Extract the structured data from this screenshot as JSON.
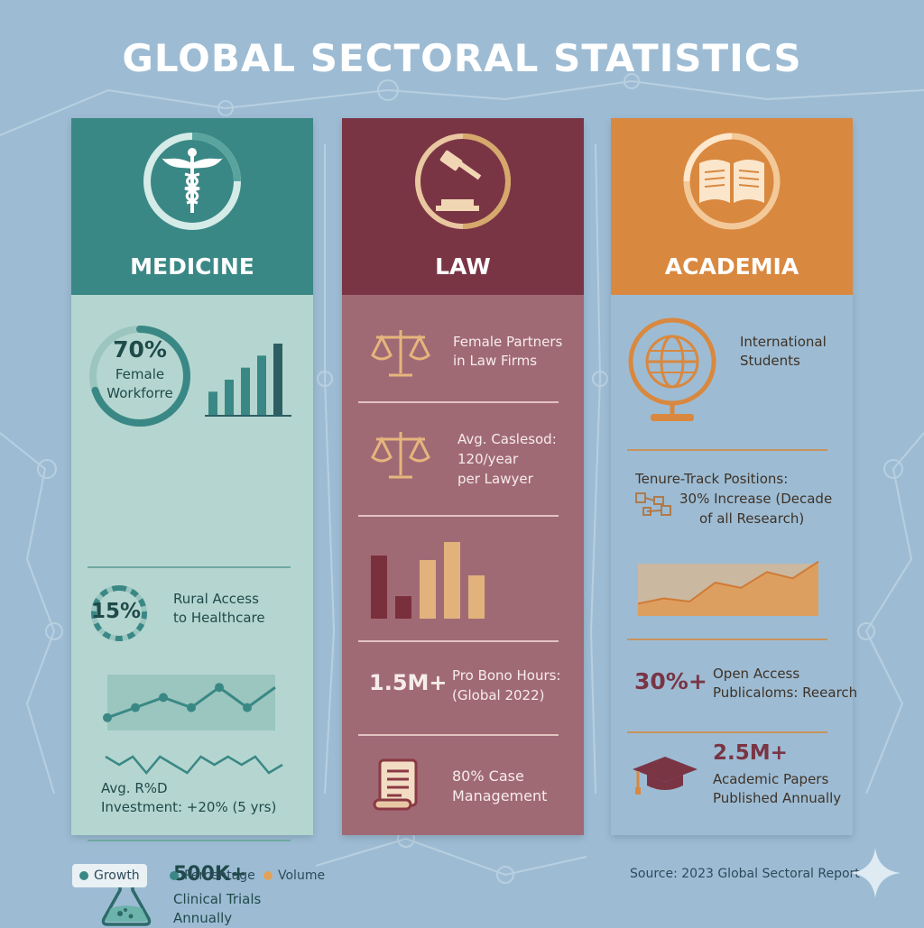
{
  "title": "GLOBAL SECTORAL STATISTICS",
  "colors": {
    "medicine_header": "#3a8885",
    "medicine_body": "#b5d6d0",
    "law_header": "#7a3545",
    "law_body": "#a06a75",
    "academia_header": "#d9883f",
    "academia_body": "#edcf9f",
    "background": "#9dbcd4"
  },
  "medicine": {
    "label": "MEDICINE",
    "icon": "caduceus-icon",
    "female_workforce": {
      "value": "70%",
      "line1": "Female",
      "line2": "Workforre",
      "percent": 70
    },
    "bar_values": [
      2,
      3,
      4,
      5,
      6
    ],
    "rural": {
      "value": "15%",
      "line1": "Rural Access",
      "line2": "to Healthcare",
      "percent": 15
    },
    "trend_values": [
      3,
      4,
      5,
      4,
      6,
      4,
      6
    ],
    "wave_values": [
      3,
      2,
      3,
      1,
      3,
      2,
      1,
      3,
      2,
      3,
      2,
      3,
      1,
      2
    ],
    "rnd": {
      "line1": "Avg. R%D",
      "line2": "Investment:  +20% (5 yrs)"
    },
    "trials": {
      "value": "500K+",
      "line1": "Clinical Trials",
      "line2": "Annually"
    },
    "trials_icon": "flask-icon"
  },
  "law": {
    "label": "LAW",
    "icon": "gavel-icon",
    "partners": {
      "line1": "Female Partners",
      "line2": "in Law Firms"
    },
    "partners_icon": "scales-icon",
    "caseload": {
      "line1": "Avg. Caslesod:",
      "line2": "120/year",
      "line3": "per Lawyer"
    },
    "caseload_icon": "scales-icon",
    "bar_values": [
      7,
      2.5,
      6.5,
      8.5,
      4.8
    ],
    "pro_bono": {
      "value": "1.5M+",
      "line1": "Pro Bono Hours:",
      "line2": "(Global 2022)"
    },
    "case_mgmt": {
      "line1": "80% Case",
      "line2": "Management"
    },
    "case_icon": "scroll-icon"
  },
  "academia": {
    "label": "ACADEMIA",
    "icon": "book-icon",
    "intl": {
      "line1": "International",
      "line2": "Students"
    },
    "intl_icon": "globe-icon",
    "tenure": {
      "line1": "Tenure-Track Positions:",
      "line2": "30%  Increase (Decade",
      "line3": "of all Research)"
    },
    "tenure_icon": "network-icon",
    "area_values": [
      1,
      1.5,
      1.2,
      3,
      2.5,
      4,
      3.4,
      5
    ],
    "open_access": {
      "value": "30%+",
      "line1": "Open Access",
      "line2": "Publicaloms: Reearch"
    },
    "papers": {
      "value": "2.5M+",
      "line1": "Academic Papers",
      "line2": "Published Annually"
    },
    "papers_icon": "graduation-cap-icon"
  },
  "legend": [
    {
      "label": "Growth",
      "color": "#3a8885"
    },
    {
      "label": "Percentage",
      "color": "#3a8885"
    },
    {
      "label": "Volume",
      "color": "#e0a25a"
    }
  ],
  "source": "Source: 2023 Global Sectoral Report",
  "sparkle_icon": "sparkle-icon"
}
